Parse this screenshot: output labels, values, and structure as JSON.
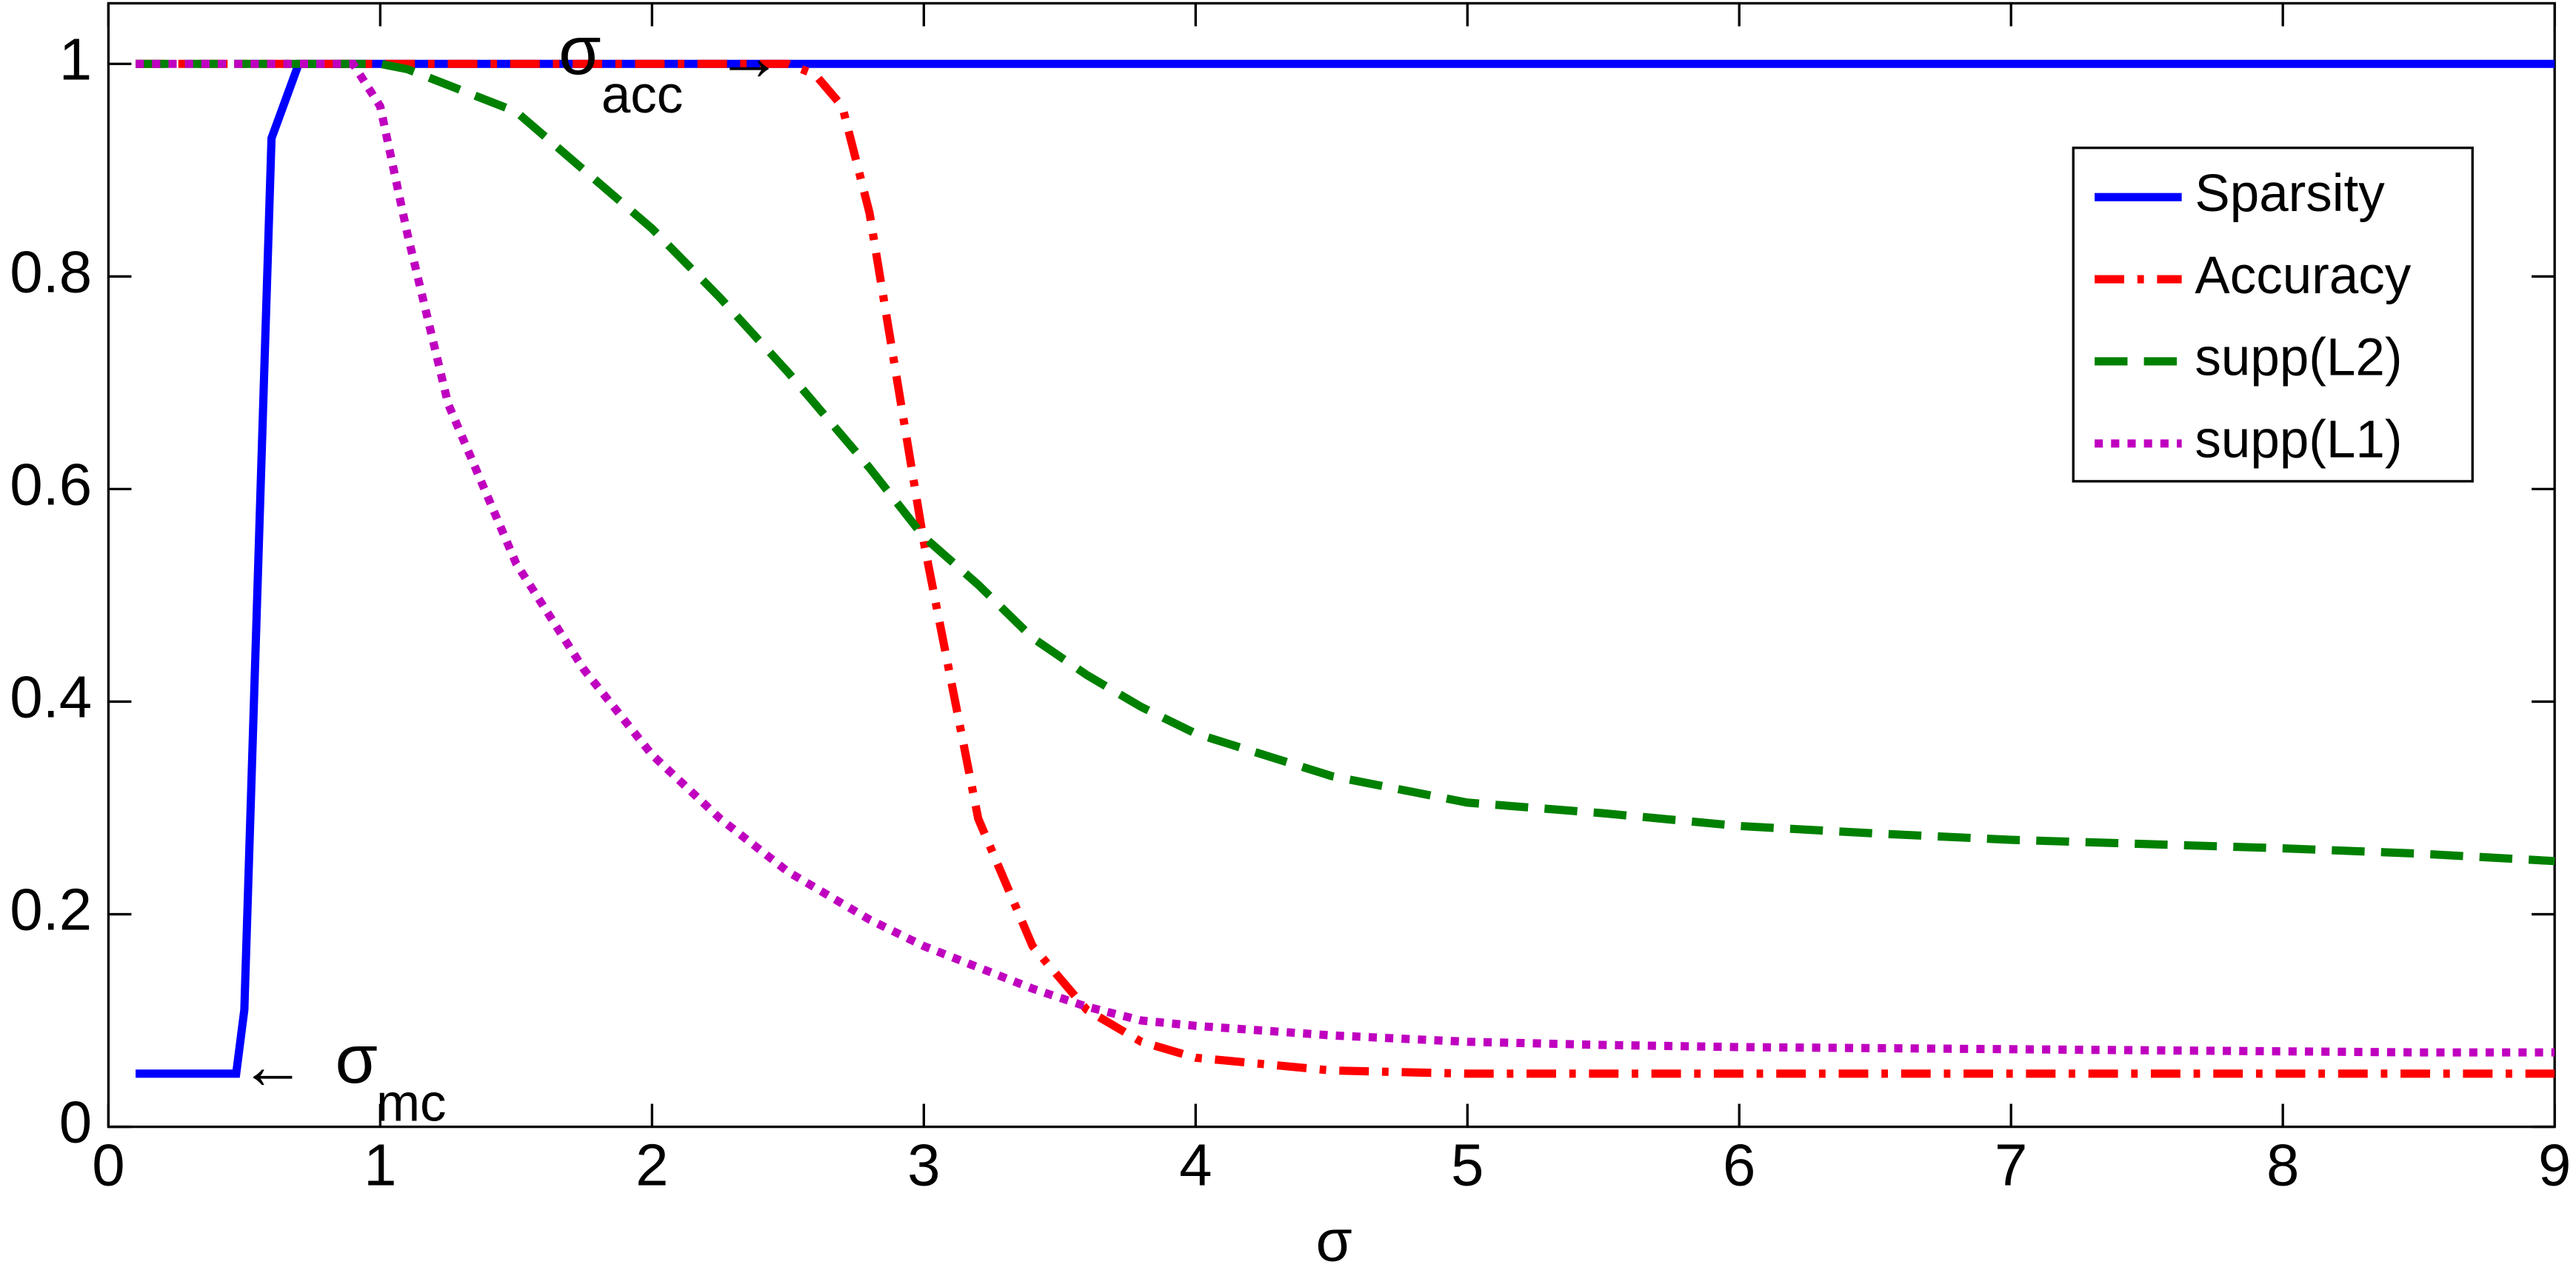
{
  "chart_data": {
    "type": "line",
    "xlabel": "σ",
    "x": [
      0.1,
      0.3,
      0.47,
      0.5,
      0.6,
      0.7,
      0.9,
      1,
      1.1,
      1.25,
      1.5,
      1.75,
      2,
      2.25,
      2.5,
      2.6,
      2.7,
      2.8,
      3,
      3.2,
      3.4,
      3.6,
      3.8,
      4,
      4.5,
      5,
      5.5,
      6,
      6.5,
      7,
      7.5,
      8,
      8.5,
      9
    ],
    "series": [
      {
        "name": "Sparsity",
        "color": "#0000ff",
        "dash": "solid",
        "values": [
          0.05,
          0.05,
          0.05,
          0.11,
          0.93,
          1,
          1,
          1,
          1,
          1,
          1,
          1,
          1,
          1,
          1,
          1,
          1,
          1,
          1,
          1,
          1,
          1,
          1,
          1,
          1,
          1,
          1,
          1,
          1,
          1,
          1,
          1,
          1,
          1
        ]
      },
      {
        "name": "Accuracy",
        "color": "#ff0000",
        "dash": "dashdot",
        "values": [
          1,
          1,
          1,
          1,
          1,
          1,
          1,
          1,
          1,
          1,
          1,
          1,
          1,
          1,
          1,
          0.99,
          0.96,
          0.86,
          0.55,
          0.29,
          0.17,
          0.11,
          0.08,
          0.065,
          0.053,
          0.05,
          0.05,
          0.05,
          0.05,
          0.05,
          0.05,
          0.05,
          0.05,
          0.05
        ]
      },
      {
        "name": "supp(L2)",
        "color": "#008000",
        "dash": "dashed",
        "values": [
          1,
          1,
          1,
          1,
          1,
          1,
          1,
          1,
          0.995,
          0.98,
          0.955,
          0.9,
          0.845,
          0.78,
          0.71,
          0.68,
          0.65,
          0.62,
          0.555,
          0.51,
          0.46,
          0.425,
          0.395,
          0.37,
          0.33,
          0.305,
          0.295,
          0.283,
          0.276,
          0.27,
          0.266,
          0.262,
          0.257,
          0.25
        ]
      },
      {
        "name": "supp(L1)",
        "color": "#bf00bf",
        "dash": "dotted",
        "values": [
          1,
          1,
          1,
          1,
          1,
          1,
          1,
          0.96,
          0.84,
          0.68,
          0.53,
          0.43,
          0.35,
          0.29,
          0.24,
          0.225,
          0.21,
          0.195,
          0.17,
          0.15,
          0.13,
          0.113,
          0.1,
          0.095,
          0.086,
          0.08,
          0.077,
          0.075,
          0.074,
          0.073,
          0.072,
          0.071,
          0.07,
          0.07
        ]
      }
    ],
    "annotations": [
      {
        "arrow": "←",
        "symbol": "σ",
        "sub": "mc"
      },
      {
        "symbol": "σ",
        "sub": "acc",
        "arrow": "→"
      }
    ],
    "xlim": [
      0,
      9
    ],
    "xticks": [
      0,
      1,
      2,
      3,
      4,
      5,
      6,
      7,
      8,
      9
    ],
    "ylim": [
      0,
      1.057
    ],
    "yticks": [
      0,
      0.2,
      0.4,
      0.6,
      0.8,
      1
    ],
    "legend": "upper right"
  }
}
